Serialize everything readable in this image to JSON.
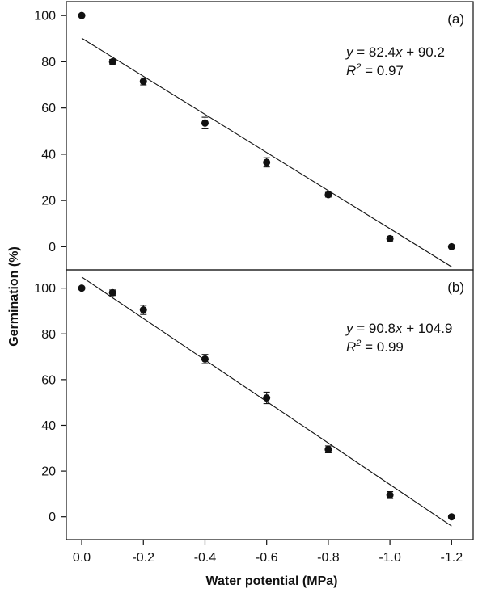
{
  "chart_data": {
    "type": "scatter",
    "xlabel": "Water potential (MPa)",
    "ylabel": "Germination (%)",
    "x_ticks": [
      0.0,
      -0.2,
      -0.4,
      -0.6,
      -0.8,
      -1.0,
      -1.2
    ],
    "x_tick_labels": [
      "0.0",
      "-0.2",
      "-0.4",
      "-0.6",
      "-0.8",
      "-1.0",
      "-1.2"
    ],
    "xlim": [
      0.05,
      -1.27
    ],
    "panels": [
      {
        "label": "(a)",
        "equation": {
          "y_italic": "y",
          "rhs_1": " = 82.4",
          "x_italic": "x",
          "rhs_2": " + 90.2"
        },
        "r2": {
          "r": "R",
          "exp": "2",
          "value": " = 0.97"
        },
        "ylim": [
          -10,
          106
        ],
        "y_ticks": [
          0,
          20,
          40,
          60,
          80,
          100
        ],
        "y_tick_labels": [
          "0",
          "20",
          "40",
          "60",
          "80",
          "100"
        ],
        "fit": {
          "slope": 82.4,
          "intercept": 90.2
        },
        "points": [
          {
            "x": 0.0,
            "y": 100,
            "err": 0
          },
          {
            "x": -0.1,
            "y": 80,
            "err": 1
          },
          {
            "x": -0.2,
            "y": 71.5,
            "err": 1.5
          },
          {
            "x": -0.4,
            "y": 53.5,
            "err": 2.5
          },
          {
            "x": -0.6,
            "y": 36.5,
            "err": 2
          },
          {
            "x": -0.8,
            "y": 22.5,
            "err": 1
          },
          {
            "x": -1.0,
            "y": 3.5,
            "err": 1
          },
          {
            "x": -1.2,
            "y": 0,
            "err": 0
          }
        ]
      },
      {
        "label": "(b)",
        "equation": {
          "y_italic": "y",
          "rhs_1": " = 90.8",
          "x_italic": "x",
          "rhs_2": " + 104.9"
        },
        "r2": {
          "r": "R",
          "exp": "2",
          "value": " = 0.99"
        },
        "ylim": [
          -10,
          108
        ],
        "y_ticks": [
          0,
          20,
          40,
          60,
          80,
          100
        ],
        "y_tick_labels": [
          "0",
          "20",
          "40",
          "60",
          "80",
          "100"
        ],
        "fit": {
          "slope": 90.8,
          "intercept": 104.9
        },
        "points": [
          {
            "x": 0.0,
            "y": 100,
            "err": 0
          },
          {
            "x": -0.1,
            "y": 98,
            "err": 1.2
          },
          {
            "x": -0.2,
            "y": 90.5,
            "err": 2
          },
          {
            "x": -0.4,
            "y": 69,
            "err": 2
          },
          {
            "x": -0.6,
            "y": 52,
            "err": 2.5
          },
          {
            "x": -0.8,
            "y": 29.5,
            "err": 1.5
          },
          {
            "x": -1.0,
            "y": 9.5,
            "err": 1.5
          },
          {
            "x": -1.2,
            "y": 0,
            "err": 0
          }
        ]
      }
    ]
  }
}
